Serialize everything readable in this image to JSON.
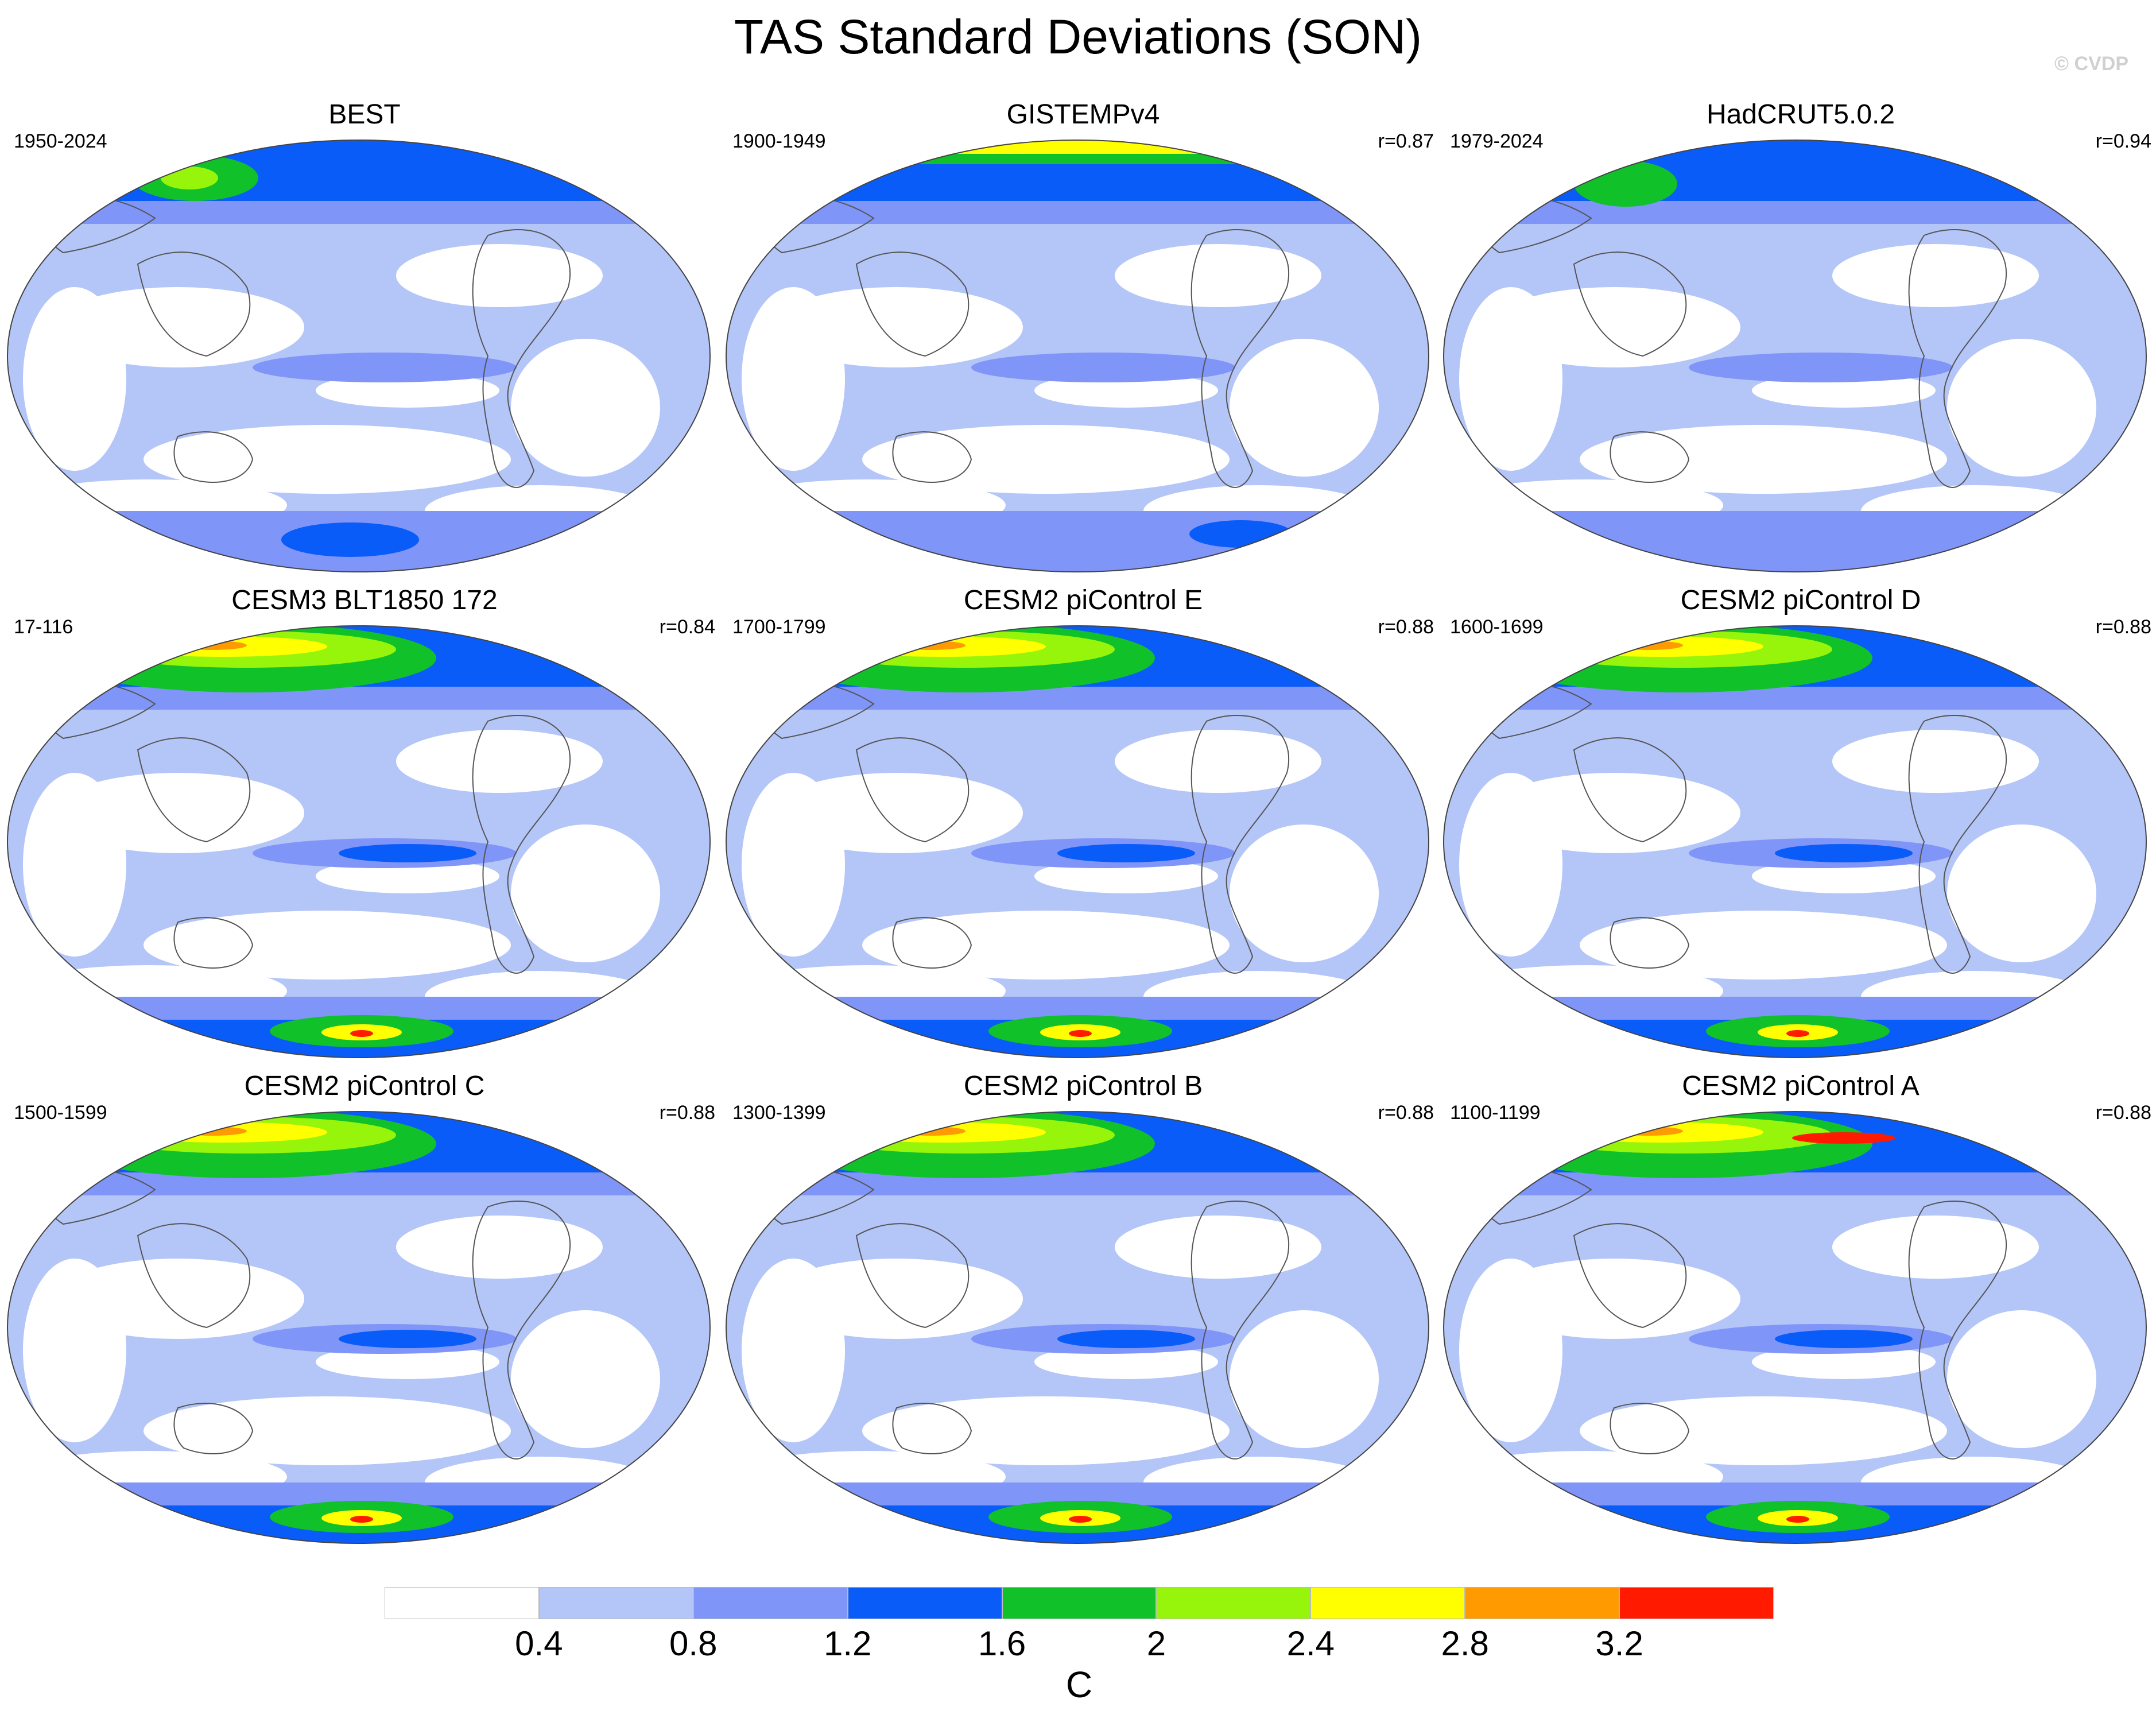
{
  "title": "TAS Standard Deviations (SON)",
  "credit": "© CVDP",
  "panels": [
    {
      "name": "BEST",
      "period": "1950-2024",
      "corr": ""
    },
    {
      "name": "GISTEMPv4",
      "period": "1900-1949",
      "corr": "r=0.87"
    },
    {
      "name": "HadCRUT5.0.2",
      "period": "1979-2024",
      "corr": "r=0.94"
    },
    {
      "name": "CESM3 BLT1850 172",
      "period": "17-116",
      "corr": "r=0.84"
    },
    {
      "name": "CESM2 piControl E",
      "period": "1700-1799",
      "corr": "r=0.88"
    },
    {
      "name": "CESM2 piControl D",
      "period": "1600-1699",
      "corr": "r=0.88"
    },
    {
      "name": "CESM2 piControl C",
      "period": "1500-1599",
      "corr": "r=0.88"
    },
    {
      "name": "CESM2 piControl B",
      "period": "1300-1399",
      "corr": "r=0.88"
    },
    {
      "name": "CESM2 piControl A",
      "period": "1100-1199",
      "corr": "r=0.88"
    }
  ],
  "colorbar": {
    "labels": [
      "0.4",
      "0.8",
      "1.2",
      "1.6",
      "2",
      "2.4",
      "2.8",
      "3.2"
    ],
    "colors": [
      "#ffffff",
      "#b4c5f8",
      "#8095f8",
      "#0a5cf8",
      "#10c12a",
      "#96f50a",
      "#ffff00",
      "#ff9a00",
      "#ff1a00"
    ],
    "unit": "C"
  }
}
